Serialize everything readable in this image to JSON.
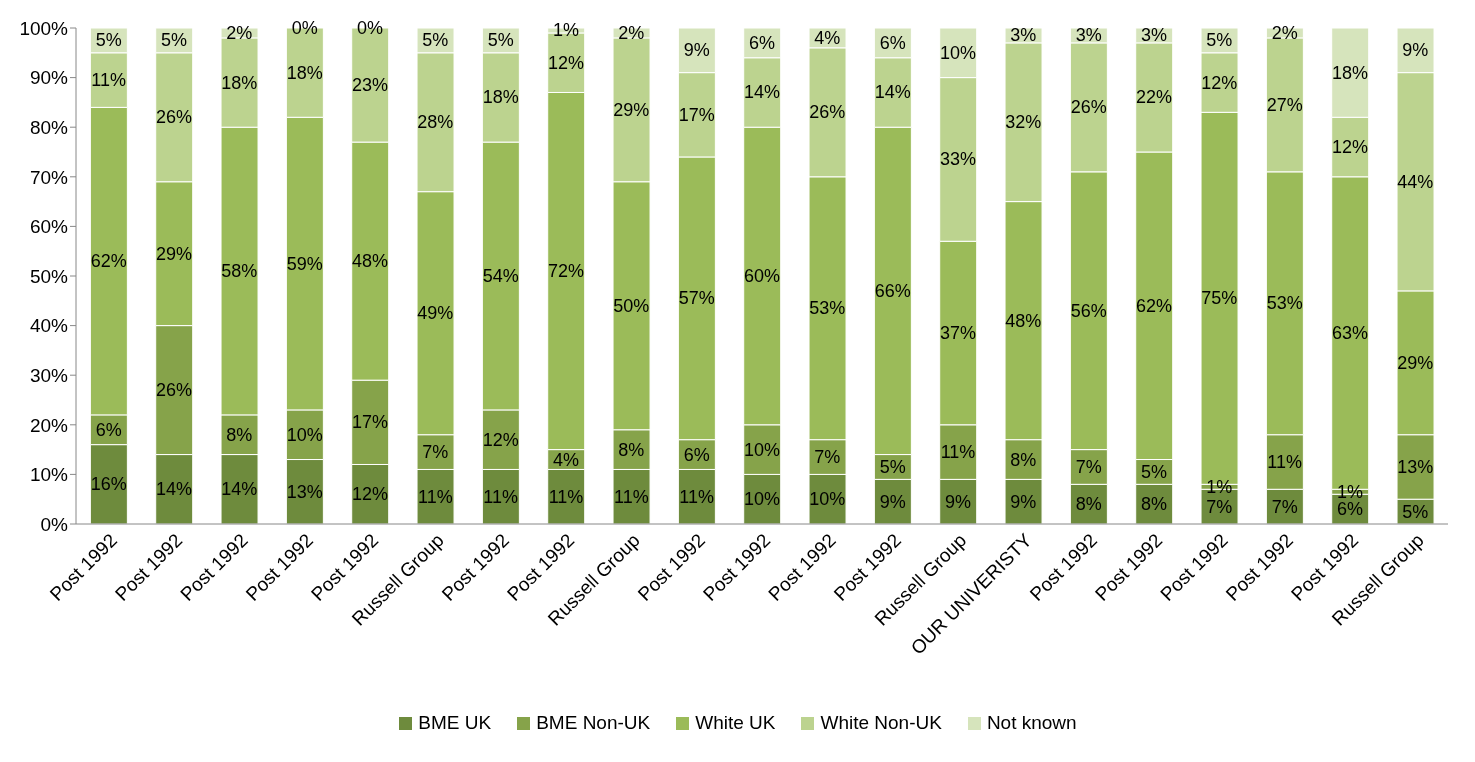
{
  "chart_data": {
    "type": "bar",
    "stacked": true,
    "legend": "bottom",
    "grid": false,
    "categories": [
      "Post 1992",
      "Post 1992",
      "Post 1992",
      "Post 1992",
      "Post 1992",
      "Russell Group",
      "Post 1992",
      "Post 1992",
      "Russell Group",
      "Post 1992",
      "Post 1992",
      "Post 1992",
      "Post 1992",
      "Russell Group",
      "OUR UNIVERISTY",
      "Post 1992",
      "Post 1992",
      "Post 1992",
      "Post 1992",
      "Post 1992",
      "Russell Group"
    ],
    "ylim": [
      0,
      100
    ],
    "yticks": [
      {
        "value": 0,
        "label": "0%"
      },
      {
        "value": 10,
        "label": "10%"
      },
      {
        "value": 20,
        "label": "20%"
      },
      {
        "value": 30,
        "label": "30%"
      },
      {
        "value": 40,
        "label": "40%"
      },
      {
        "value": 50,
        "label": "50%"
      },
      {
        "value": 60,
        "label": "60%"
      },
      {
        "value": 70,
        "label": "70%"
      },
      {
        "value": 80,
        "label": "80%"
      },
      {
        "value": 90,
        "label": "90%"
      },
      {
        "value": 100,
        "label": "100%"
      }
    ],
    "series": [
      {
        "name": "BME UK",
        "color": "#6e8b3d",
        "values": [
          16,
          14,
          14,
          13,
          12,
          11,
          11,
          11,
          11,
          11,
          10,
          10,
          9,
          9,
          9,
          8,
          8,
          7,
          7,
          6,
          5
        ],
        "value_labels": [
          "16%",
          "14%",
          "14%",
          "13%",
          "12%",
          "11%",
          "11%",
          "11%",
          "11%",
          "11%",
          "10%",
          "10%",
          "9%",
          "9%",
          "9%",
          "8%",
          "8%",
          "7%",
          "7%",
          "6%",
          "5%"
        ]
      },
      {
        "name": "BME Non-UK",
        "color": "#86a34a",
        "values": [
          6,
          26,
          8,
          10,
          17,
          7,
          12,
          4,
          8,
          6,
          10,
          7,
          5,
          11,
          8,
          7,
          5,
          1,
          11,
          1,
          13
        ],
        "value_labels": [
          "6%",
          "26%",
          "8%",
          "10%",
          "17%",
          "7%",
          "12%",
          "4%",
          "8%",
          "6%",
          "10%",
          "7%",
          "5%",
          "11%",
          "8%",
          "7%",
          "5%",
          "1%",
          "11%",
          "1%",
          "13%"
        ]
      },
      {
        "name": "White UK",
        "color": "#9bbb59",
        "values": [
          62,
          29,
          58,
          59,
          48,
          49,
          54,
          72,
          50,
          57,
          60,
          53,
          66,
          37,
          48,
          56,
          62,
          75,
          53,
          63,
          29
        ],
        "value_labels": [
          "62%",
          "29%",
          "58%",
          "59%",
          "48%",
          "49%",
          "54%",
          "72%",
          "50%",
          "57%",
          "60%",
          "53%",
          "66%",
          "37%",
          "48%",
          "56%",
          "62%",
          "75%",
          "53%",
          "63%",
          "29%"
        ]
      },
      {
        "name": "White Non-UK",
        "color": "#bcd38f",
        "values": [
          11,
          26,
          18,
          18,
          23,
          28,
          18,
          12,
          29,
          17,
          14,
          26,
          14,
          33,
          32,
          26,
          22,
          12,
          27,
          12,
          44
        ],
        "value_labels": [
          "11%",
          "26%",
          "18%",
          "18%",
          "23%",
          "28%",
          "18%",
          "12%",
          "29%",
          "17%",
          "14%",
          "26%",
          "14%",
          "33%",
          "32%",
          "26%",
          "22%",
          "12%",
          "27%",
          "12%",
          "44%"
        ]
      },
      {
        "name": "Not known",
        "color": "#d6e4bc",
        "values": [
          5,
          5,
          2,
          0,
          0,
          5,
          5,
          1,
          2,
          9,
          6,
          4,
          6,
          10,
          3,
          3,
          3,
          5,
          2,
          18,
          9
        ],
        "value_labels": [
          "5%",
          "5%",
          "2%",
          "0%",
          "0%",
          "5%",
          "5%",
          "1%",
          "2%",
          "9%",
          "6%",
          "4%",
          "6%",
          "10%",
          "3%",
          "3%",
          "3%",
          "5%",
          "2%",
          "18%",
          "9%"
        ]
      }
    ]
  }
}
